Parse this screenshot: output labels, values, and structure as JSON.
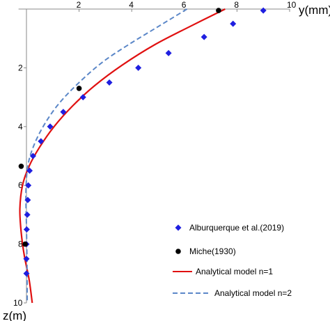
{
  "chart_data": {
    "type": "scatter",
    "xlabel": "y(mm)",
    "ylabel": "z(m)",
    "xlim": [
      0,
      10
    ],
    "ylim": [
      0,
      10
    ],
    "x_ticks": [
      "2",
      "4",
      "6",
      "8",
      "10"
    ],
    "y_ticks": [
      "2",
      "4",
      "6",
      "8",
      "10"
    ],
    "x_axis_position": "top",
    "y_axis_inverted": true,
    "grid": false,
    "legend_position": "bottom-right",
    "series": [
      {
        "name": "Alburquerque et al.(2019)",
        "kind": "markers",
        "marker": "diamond",
        "color": "#1f1fe0",
        "points": [
          [
            9.0,
            0.05
          ],
          [
            7.85,
            0.5
          ],
          [
            6.75,
            0.95
          ],
          [
            5.4,
            1.5
          ],
          [
            4.25,
            2.0
          ],
          [
            3.15,
            2.5
          ],
          [
            2.15,
            3.0
          ],
          [
            1.4,
            3.5
          ],
          [
            0.9,
            4.0
          ],
          [
            0.55,
            4.5
          ],
          [
            0.25,
            5.0
          ],
          [
            0.12,
            5.5
          ],
          [
            0.07,
            6.0
          ],
          [
            0.05,
            6.5
          ],
          [
            0.03,
            7.0
          ],
          [
            0.01,
            7.5
          ],
          [
            0.0,
            8.0
          ],
          [
            0.0,
            8.5
          ],
          [
            0.0,
            9.0
          ]
        ]
      },
      {
        "name": "Miche(1930)",
        "kind": "markers",
        "marker": "circle",
        "color": "#000000",
        "points": [
          [
            7.3,
            0.05
          ],
          [
            2.0,
            2.7
          ],
          [
            -0.2,
            5.35
          ],
          [
            -0.05,
            8.0
          ]
        ]
      },
      {
        "name": "Analytical model  n=1",
        "kind": "line",
        "style": "solid",
        "color": "#e01010",
        "points": [
          [
            7.55,
            0.0
          ],
          [
            6.2,
            0.6
          ],
          [
            4.9,
            1.2
          ],
          [
            3.65,
            1.9
          ],
          [
            2.6,
            2.6
          ],
          [
            1.75,
            3.3
          ],
          [
            1.05,
            4.0
          ],
          [
            0.5,
            4.7
          ],
          [
            0.1,
            5.35
          ],
          [
            -0.15,
            6.0
          ],
          [
            -0.25,
            6.8
          ],
          [
            -0.2,
            7.6
          ],
          [
            -0.08,
            8.4
          ],
          [
            0.1,
            9.2
          ],
          [
            0.22,
            10.0
          ]
        ]
      },
      {
        "name": "Analytical model n=2",
        "kind": "line",
        "style": "dashed",
        "color": "#5b87c8",
        "points": [
          [
            6.1,
            0.0
          ],
          [
            5.0,
            0.6
          ],
          [
            3.9,
            1.2
          ],
          [
            2.9,
            1.8
          ],
          [
            2.0,
            2.5
          ],
          [
            1.25,
            3.2
          ],
          [
            0.7,
            3.9
          ],
          [
            0.3,
            4.6
          ],
          [
            0.06,
            5.3
          ],
          [
            -0.02,
            6.2
          ],
          [
            0.0,
            7.4
          ],
          [
            0.02,
            8.6
          ],
          [
            0.03,
            10.0
          ]
        ]
      }
    ]
  }
}
